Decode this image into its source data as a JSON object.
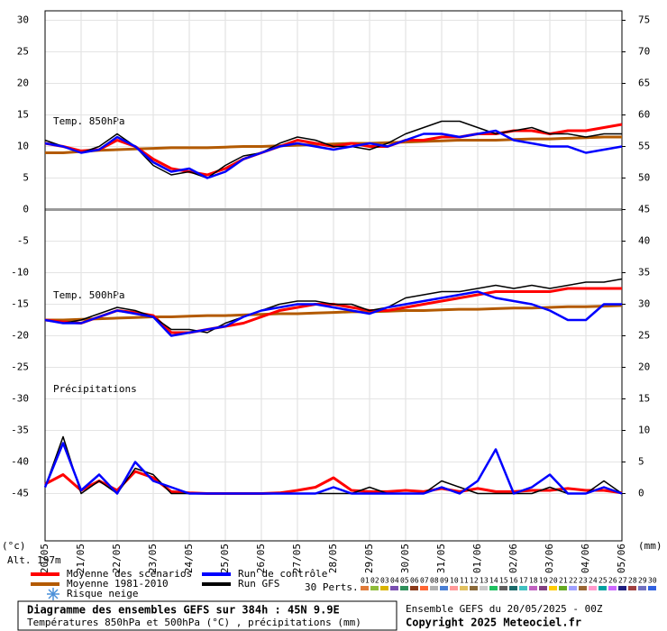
{
  "chart_data": {
    "type": "line",
    "xlim": [
      0,
      16
    ],
    "xticks": [
      {
        "value": 0,
        "label": "20/05"
      },
      {
        "value": 1,
        "label": "21/05"
      },
      {
        "value": 2,
        "label": "22/05"
      },
      {
        "value": 3,
        "label": "23/05"
      },
      {
        "value": 4,
        "label": "24/05"
      },
      {
        "value": 5,
        "label": "25/05"
      },
      {
        "value": 6,
        "label": "26/05"
      },
      {
        "value": 7,
        "label": "27/05"
      },
      {
        "value": 8,
        "label": "28/05"
      },
      {
        "value": 9,
        "label": "29/05"
      },
      {
        "value": 10,
        "label": "30/05"
      },
      {
        "value": 11,
        "label": "31/05"
      },
      {
        "value": 12,
        "label": "01/06"
      },
      {
        "value": 13,
        "label": "02/06"
      },
      {
        "value": 14,
        "label": "03/06"
      },
      {
        "value": 15,
        "label": "04/06"
      },
      {
        "value": 16,
        "label": "05/06"
      }
    ],
    "x": [
      0,
      0.5,
      1,
      1.5,
      2,
      2.5,
      3,
      3.5,
      4,
      4.5,
      5,
      5.5,
      6,
      6.5,
      7,
      7.5,
      8,
      8.5,
      9,
      9.5,
      10,
      10.5,
      11,
      11.5,
      12,
      12.5,
      13,
      13.5,
      14,
      14.5,
      15,
      15.5,
      16
    ],
    "ylim": [
      -52.5,
      31.5
    ],
    "yticks": [
      30,
      25,
      20,
      15,
      10,
      5,
      0,
      -5,
      -10,
      -15,
      -20,
      -25,
      -30,
      -35,
      -40,
      -45
    ],
    "y2lim": [
      -7.5,
      76.5
    ],
    "y2ticks": [
      75,
      70,
      65,
      60,
      55,
      50,
      45,
      40,
      35,
      30,
      25,
      20,
      15,
      10,
      5,
      0
    ],
    "y_unit": "(°c)",
    "y2_unit": "(mm)",
    "altitude": "Alt. 197m",
    "grid": true,
    "annotations": [
      "Temp. 850hPa",
      "Temp. 500hPa",
      "Précipitations"
    ],
    "series": [
      {
        "name": "Moyenne des scénarios",
        "color": "#ff0000",
        "width": 3,
        "t850": [
          10.5,
          10,
          9.3,
          9.5,
          11,
          10,
          8,
          6.5,
          6,
          5.5,
          6.5,
          8,
          9,
          10,
          11,
          10.5,
          10,
          10.5,
          10,
          10,
          11,
          11,
          11.5,
          11.5,
          12,
          12,
          12.5,
          12.5,
          12,
          12.5,
          12.5,
          13,
          13.5
        ],
        "t500": [
          -17.5,
          -17.8,
          -18,
          -17,
          -16,
          -16.3,
          -16.8,
          -19.5,
          -19.5,
          -19,
          -18.5,
          -18,
          -17,
          -16,
          -15.5,
          -15,
          -15,
          -15.5,
          -16,
          -16,
          -15.5,
          -15,
          -14.5,
          -14,
          -13.5,
          -13,
          -13,
          -13,
          -13,
          -12.5,
          -12.5,
          -12.5,
          -12.5
        ],
        "precip": [
          1.5,
          3,
          0.5,
          2,
          0.5,
          3.5,
          2.5,
          0.3,
          0.1,
          0,
          0,
          0,
          0,
          0.1,
          0.5,
          1,
          2.5,
          0.5,
          0.3,
          0.3,
          0.5,
          0.3,
          0.8,
          0.3,
          0.8,
          0.3,
          0.3,
          0.5,
          0.5,
          0.8,
          0.5,
          0.5,
          0.1
        ]
      },
      {
        "name": "Moyenne 1981-2010",
        "color": "#b35a00",
        "width": 3,
        "t850": [
          9,
          9,
          9.2,
          9.4,
          9.5,
          9.6,
          9.7,
          9.8,
          9.8,
          9.8,
          9.9,
          10,
          10,
          10.1,
          10.2,
          10.3,
          10.4,
          10.5,
          10.5,
          10.6,
          10.7,
          10.8,
          10.9,
          11,
          11,
          11,
          11.1,
          11.2,
          11.2,
          11.3,
          11.4,
          11.5,
          11.5
        ],
        "t500": [
          -17.5,
          -17.5,
          -17.4,
          -17.3,
          -17.2,
          -17.1,
          -17,
          -17,
          -16.9,
          -16.8,
          -16.8,
          -16.7,
          -16.6,
          -16.5,
          -16.5,
          -16.4,
          -16.3,
          -16.2,
          -16.2,
          -16.1,
          -16,
          -16,
          -15.9,
          -15.8,
          -15.8,
          -15.7,
          -15.6,
          -15.6,
          -15.5,
          -15.4,
          -15.4,
          -15.3,
          -15.2
        ]
      },
      {
        "name": "Run de contrôle",
        "color": "#0000ff",
        "width": 2.5,
        "t850": [
          10.5,
          10,
          9,
          9.5,
          11.5,
          10,
          7.5,
          6,
          6.5,
          5,
          6,
          8,
          9,
          10,
          10.5,
          10,
          9.5,
          10,
          10.5,
          10,
          11,
          12,
          12,
          11.5,
          12,
          12.5,
          11,
          10.5,
          10,
          10,
          9,
          9.5,
          10
        ],
        "t500": [
          -17.5,
          -18,
          -18,
          -17,
          -16,
          -16.5,
          -17,
          -20,
          -19.5,
          -19,
          -18.5,
          -17,
          -16,
          -15.5,
          -15,
          -15,
          -15.5,
          -16,
          -16.5,
          -15.5,
          -15,
          -14.5,
          -14,
          -13.5,
          -13,
          -14,
          -14.5,
          -15,
          -16,
          -17.5,
          -17.5,
          -15,
          -15
        ],
        "precip": [
          1,
          8,
          0.5,
          3,
          0,
          5,
          2,
          1,
          0,
          0,
          0,
          0,
          0,
          0,
          0,
          0,
          1,
          0,
          0,
          0,
          0,
          0,
          1,
          0,
          2,
          7,
          0,
          1,
          3,
          0,
          0,
          1,
          0
        ]
      },
      {
        "name": "Run GFS",
        "color": "#000000",
        "width": 1.5,
        "t850": [
          11,
          10,
          9,
          10,
          12,
          10,
          7,
          5.5,
          6,
          5,
          7,
          8.5,
          9,
          10.5,
          11.5,
          11,
          10,
          10,
          9.5,
          10.5,
          12,
          13,
          14,
          14,
          13,
          12,
          12.5,
          13,
          12,
          12,
          11.5,
          12,
          12
        ],
        "t500": [
          -17.5,
          -18,
          -17.5,
          -16.5,
          -15.5,
          -16,
          -17,
          -19,
          -19,
          -19.5,
          -18,
          -17,
          -16,
          -15,
          -14.5,
          -14.5,
          -15,
          -15,
          -16,
          -15.5,
          -14,
          -13.5,
          -13,
          -13,
          -12.5,
          -12,
          -12.5,
          -12,
          -12.5,
          -12,
          -11.5,
          -11.5,
          -11
        ],
        "precip": [
          1,
          9,
          0,
          2,
          0,
          4,
          3,
          0,
          0,
          0,
          0,
          0,
          0,
          0,
          0,
          0,
          0,
          0,
          1,
          0,
          0,
          0,
          2,
          1,
          0,
          0,
          0,
          0,
          1,
          0,
          0,
          2,
          0
        ]
      }
    ],
    "snow_legend": "Risque neige",
    "perturbations_label": "30 Perts.",
    "perturbations": [
      {
        "name": "01",
        "color": "#e07b39"
      },
      {
        "name": "02",
        "color": "#8fbc3a"
      },
      {
        "name": "03",
        "color": "#d9b400"
      },
      {
        "name": "04",
        "color": "#7a4fb0"
      },
      {
        "name": "05",
        "color": "#2f8f5b"
      },
      {
        "name": "06",
        "color": "#8b3a1a"
      },
      {
        "name": "07",
        "color": "#ff6633"
      },
      {
        "name": "08",
        "color": "#b0b0b0"
      },
      {
        "name": "09",
        "color": "#4a7fd4"
      },
      {
        "name": "10",
        "color": "#ff9999"
      },
      {
        "name": "11",
        "color": "#e0c060"
      },
      {
        "name": "12",
        "color": "#8a6a3a"
      },
      {
        "name": "13",
        "color": "#c8c8c8"
      },
      {
        "name": "14",
        "color": "#20c060"
      },
      {
        "name": "15",
        "color": "#606060"
      },
      {
        "name": "16",
        "color": "#1a6a6a"
      },
      {
        "name": "17",
        "color": "#40c0c0"
      },
      {
        "name": "18",
        "color": "#c060c0"
      },
      {
        "name": "19",
        "color": "#804080"
      },
      {
        "name": "20",
        "color": "#ffcc00"
      },
      {
        "name": "21",
        "color": "#66aa22"
      },
      {
        "name": "22",
        "color": "#a0a0ff"
      },
      {
        "name": "23",
        "color": "#996633"
      },
      {
        "name": "24",
        "color": "#ff99cc"
      },
      {
        "name": "25",
        "color": "#00a0a0"
      },
      {
        "name": "26",
        "color": "#cc66ff"
      },
      {
        "name": "27",
        "color": "#202080"
      },
      {
        "name": "28",
        "color": "#a04040"
      },
      {
        "name": "29",
        "color": "#7070c0"
      },
      {
        "name": "30",
        "color": "#3060e0"
      }
    ],
    "footer_title": "Diagramme des ensembles GEFS sur 384h : 45N 9.9E",
    "footer_subtitle": "Températures 850hPa et 500hPa (°C) , précipitations (mm)",
    "run_info": "Ensemble GEFS du 20/05/2025 - 00Z",
    "copyright": "Copyright 2025 Meteociel.fr"
  }
}
